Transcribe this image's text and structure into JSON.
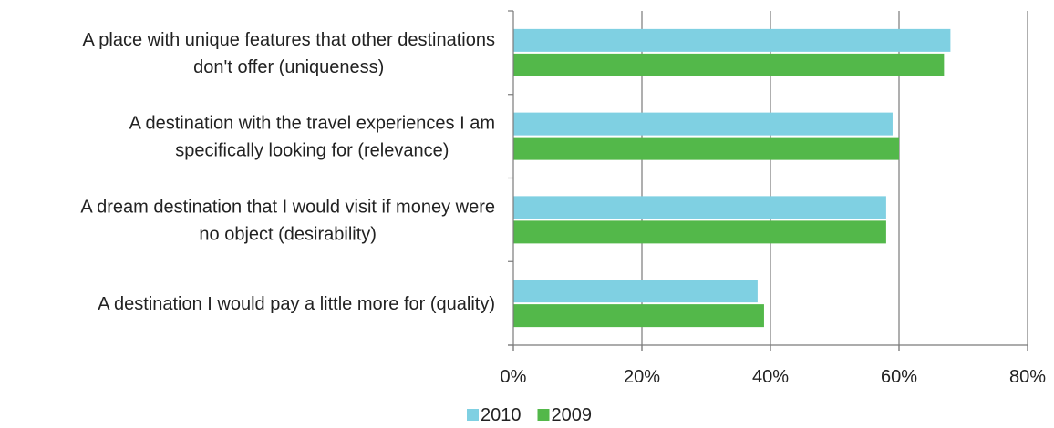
{
  "chart_data": {
    "type": "bar",
    "orientation": "horizontal",
    "categories": [
      [
        "A place with unique features that other destinations",
        "don't offer (uniqueness)"
      ],
      [
        "A destination with the travel experiences I am",
        "specifically looking for (relevance)"
      ],
      [
        "A dream destination that I would visit if money were",
        "no object (desirability)"
      ],
      [
        "A destination I would pay a little more for (quality)"
      ]
    ],
    "series": [
      {
        "name": "2010",
        "color": "#7fd0e2",
        "values": [
          68,
          59,
          58,
          38
        ]
      },
      {
        "name": "2009",
        "color": "#53b84a",
        "values": [
          67,
          60,
          58,
          39
        ]
      }
    ],
    "x_ticks": [
      "0%",
      "20%",
      "40%",
      "60%",
      "80%"
    ],
    "xlim": [
      0,
      80
    ],
    "grid": "vertical",
    "legend": "bottom-center",
    "title": "",
    "xlabel": "",
    "ylabel": ""
  }
}
